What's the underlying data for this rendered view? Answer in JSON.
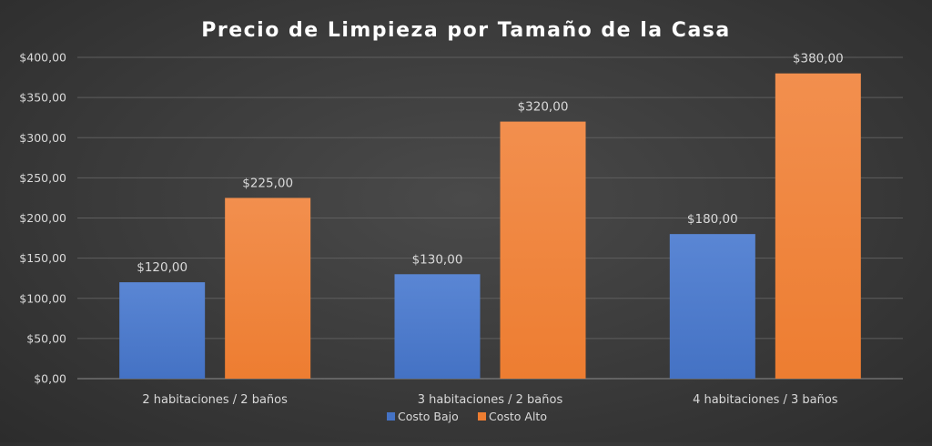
{
  "chart_data": {
    "type": "bar",
    "title": "Precio de Limpieza por Tamaño de la Casa",
    "categories": [
      "2 habitaciones / 2 baños",
      "3 habitaciones / 2 baños",
      "4 habitaciones / 3 baños"
    ],
    "series": [
      {
        "name": "Costo Bajo",
        "values": [
          120,
          130,
          180
        ],
        "labels": [
          "$120,00",
          "$130,00",
          "$180,00"
        ],
        "color": "#4472c4",
        "color_light": "#5a86d4"
      },
      {
        "name": "Costo Alto",
        "values": [
          225,
          320,
          380
        ],
        "labels": [
          "$225,00",
          "$320,00",
          "$380,00"
        ],
        "color": "#ed7d31",
        "color_light": "#f28f4e"
      }
    ],
    "ylim": [
      0,
      400
    ],
    "yticks": [
      0,
      50,
      100,
      150,
      200,
      250,
      300,
      350,
      400
    ],
    "ytick_labels": [
      "$0,00",
      "$50,00",
      "$100,00",
      "$150,00",
      "$200,00",
      "$250,00",
      "$300,00",
      "$350,00",
      "$400,00"
    ],
    "grid": true,
    "legend_position": "bottom",
    "xlabel": "",
    "ylabel": ""
  }
}
